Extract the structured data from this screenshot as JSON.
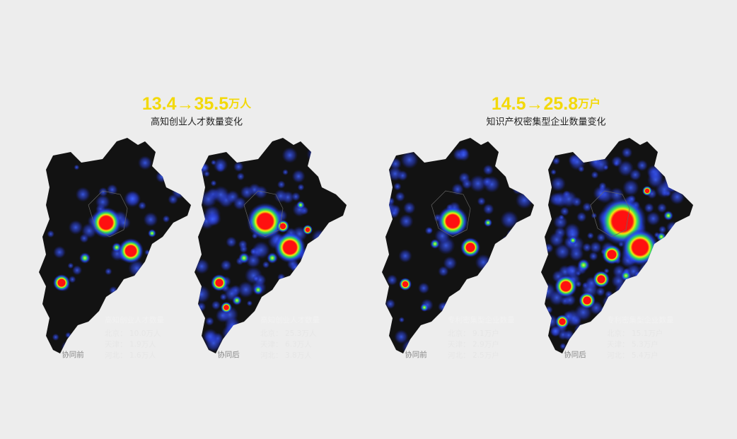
{
  "panels": [
    {
      "headline": "13.4→35.5",
      "unit": "万人",
      "subtitle": "高知创业人才数量变化",
      "maps": [
        {
          "caption": "协同前",
          "legend_title": "高知创业人才数量",
          "rows": [
            {
              "region": "北京：",
              "value": "10.0万人"
            },
            {
              "region": "天津：",
              "value": "1.9万人"
            },
            {
              "region": "河北：",
              "value": "1.6万人"
            }
          ]
        },
        {
          "caption": "协同后",
          "legend_title": "高知创业人才数量",
          "rows": [
            {
              "region": "北京：",
              "value": "25.3万人"
            },
            {
              "region": "天津：",
              "value": "6.3万人"
            },
            {
              "region": "河北：",
              "value": "3.8万人"
            }
          ]
        }
      ]
    },
    {
      "headline": "14.5→25.8",
      "unit": "万户",
      "subtitle": "知识产权密集型企业数量变化",
      "maps": [
        {
          "caption": "协同前",
          "legend_title": "专利密集型企业数量",
          "rows": [
            {
              "region": "北京：",
              "value": "9.1万户"
            },
            {
              "region": "天津：",
              "value": "2.9万户"
            },
            {
              "region": "河北：",
              "value": "2.5万户"
            }
          ]
        },
        {
          "caption": "协同后",
          "legend_title": "专利密集型企业数量",
          "rows": [
            {
              "region": "北京：",
              "value": "15.1万户"
            },
            {
              "region": "天津：",
              "value": "5.3万户"
            },
            {
              "region": "河北：",
              "value": "5.4万户"
            }
          ]
        }
      ]
    }
  ]
}
